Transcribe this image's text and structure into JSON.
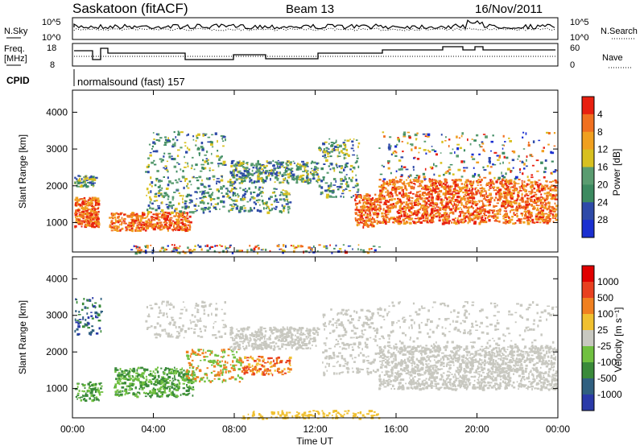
{
  "header": {
    "station": "Saskatoon (fitACF)",
    "beam": "Beam 13",
    "date": "16/Nov/2011"
  },
  "noise_panel": {
    "left_label": "N.Sky",
    "left_ticks": [
      "10^5",
      "10^0"
    ],
    "right_ticks": [
      "10^5",
      "10^0"
    ],
    "right_label": "N.Search"
  },
  "freq_panel": {
    "left_label_1": "Freq.",
    "left_label_2": "[MHz]",
    "left_ticks": [
      "18",
      "8"
    ],
    "right_ticks": [
      "60",
      "0"
    ],
    "right_label": "Nave"
  },
  "cpid_panel": {
    "label": "CPID",
    "text": "normalsound (fast) 157"
  },
  "colors": {
    "power_scale": [
      "#1a2fd0",
      "#2e4aa8",
      "#3c8a60",
      "#5a9c70",
      "#d8c020",
      "#f0a020",
      "#f07020",
      "#e82010"
    ],
    "velocity_scale": [
      "#2a3aa8",
      "#306080",
      "#3a8a3a",
      "#70c040",
      "#c8c8c0",
      "#f0c030",
      "#f08020",
      "#e84020",
      "#e00000"
    ]
  },
  "chart_data": [
    {
      "type": "heatmap",
      "name": "power",
      "xlabel": "",
      "ylabel": "Slant Range [km]",
      "y_ticks": [
        "1000",
        "2000",
        "3000",
        "4000"
      ],
      "ylim": [
        200,
        4600
      ],
      "xlim_hours": [
        0,
        24
      ],
      "colorbar_label": "Power [dB]",
      "colorbar_ticks": [
        "4",
        "8",
        "12",
        "16",
        "20",
        "24",
        "28"
      ],
      "range": [
        0,
        30
      ]
    },
    {
      "type": "heatmap",
      "name": "velocity",
      "xlabel": "Time UT",
      "ylabel": "Slant Range [km]",
      "y_ticks": [
        "1000",
        "2000",
        "3000",
        "4000"
      ],
      "ylim": [
        200,
        4600
      ],
      "x_ticks": [
        "00:00",
        "04:00",
        "08:00",
        "12:00",
        "16:00",
        "20:00",
        "00:00"
      ],
      "xlim_hours": [
        0,
        24
      ],
      "colorbar_label": "Velocity [m s⁻¹]",
      "colorbar_ticks": [
        "1000",
        "500",
        "100",
        "25",
        "-25",
        "-100",
        "-500",
        "-1000"
      ]
    }
  ]
}
